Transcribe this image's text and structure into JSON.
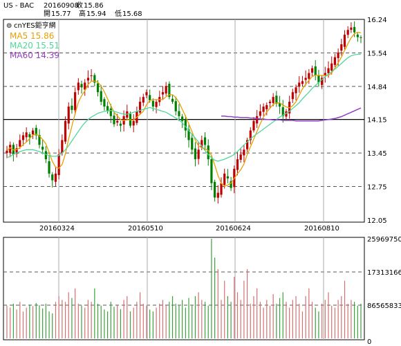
{
  "header": {
    "symbol": "US - BAC",
    "date": "20160908",
    "close_label": "收",
    "close": "15.86",
    "open_label": "開",
    "open": "15.77",
    "high_label": "高",
    "high": "15.94",
    "low_label": "低",
    "low": "15.68"
  },
  "watermark": "cnYES鉅亨網",
  "colors": {
    "up": "#c00000",
    "down": "#008000",
    "ma5": "#e8a000",
    "ma20": "#4fd89a",
    "ma60": "#9040c0",
    "frame": "#000000"
  },
  "chart_data": [
    {
      "type": "candlestick",
      "ylim": [
        12.05,
        16.24
      ],
      "y_ticks": [
        "16.24",
        "15.54",
        "14.84",
        "14.15",
        "13.45",
        "12.75",
        "12.05"
      ],
      "x_ticks": [
        "20160324",
        "20160510",
        "20160624",
        "20160810"
      ],
      "legend": [
        {
          "label": "MA5",
          "value": "15.86",
          "color": "#e8a000"
        },
        {
          "label": "MA20",
          "value": "15.51",
          "color": "#4fd89a"
        },
        {
          "label": "MA60",
          "value": "14.39",
          "color": "#9040c0"
        }
      ],
      "reference_line": 14.15,
      "closes": [
        13.5,
        13.62,
        13.42,
        13.55,
        13.72,
        13.82,
        13.88,
        13.78,
        13.92,
        13.82,
        13.62,
        13.52,
        13.32,
        13.02,
        12.88,
        13.02,
        13.42,
        13.72,
        14.12,
        14.42,
        14.35,
        14.72,
        14.92,
        14.82,
        14.92,
        15.02,
        15.07,
        14.92,
        14.72,
        14.52,
        14.42,
        14.32,
        14.22,
        14.05,
        14.12,
        14.02,
        14.22,
        14.32,
        14.02,
        14.12,
        14.32,
        14.52,
        14.62,
        14.72,
        14.55,
        14.42,
        14.52,
        14.62,
        14.72,
        14.85,
        14.62,
        14.52,
        14.32,
        14.22,
        14.12,
        13.92,
        13.72,
        13.52,
        13.32,
        13.52,
        13.72,
        13.62,
        13.32,
        12.82,
        12.52,
        12.62,
        12.82,
        13.02,
        12.92,
        12.72,
        13.12,
        13.32,
        13.42,
        13.52,
        13.72,
        13.92,
        14.12,
        14.22,
        14.32,
        14.42,
        14.45,
        14.52,
        14.62,
        14.48,
        14.42,
        14.22,
        14.32,
        14.52,
        14.72,
        14.82,
        14.92,
        14.95,
        15.02,
        15.12,
        15.22,
        15.07,
        14.92,
        15.02,
        15.12,
        15.22,
        15.32,
        15.45,
        15.55,
        15.72,
        15.92,
        16.02,
        16.07,
        15.97,
        15.87,
        15.86
      ],
      "ma20": [
        13.35,
        13.38,
        13.42,
        13.45,
        13.48,
        13.5,
        13.52,
        13.52,
        13.52,
        13.5,
        13.48,
        13.45,
        13.42,
        13.4,
        13.38,
        13.38,
        13.4,
        13.45,
        13.52,
        13.6,
        13.7,
        13.8,
        13.9,
        14,
        14.08,
        14.15,
        14.2,
        14.24,
        14.28,
        14.3,
        14.32,
        14.33,
        14.34,
        14.32,
        14.3,
        14.28,
        14.26,
        14.26,
        14.28,
        14.3,
        14.32,
        14.34,
        14.36,
        14.38,
        14.4,
        14.38,
        14.36,
        14.34,
        14.32,
        14.3,
        14.26,
        14.22,
        14.18,
        14.14,
        14.08,
        14,
        13.92,
        13.84,
        13.76,
        13.68,
        13.6,
        13.5,
        13.42,
        13.35,
        13.3,
        13.28,
        13.3,
        13.32,
        13.35,
        13.38,
        13.42,
        13.48,
        13.55,
        13.62,
        13.68,
        13.75,
        13.8,
        13.85,
        13.9,
        13.95,
        14,
        14.05,
        14.1,
        14.15,
        14.2,
        14.24,
        14.28,
        14.32,
        14.38,
        14.44,
        14.5,
        14.58,
        14.65,
        14.72,
        14.8,
        14.86,
        14.92,
        14.98,
        15.04,
        15.1,
        15.15,
        15.2,
        15.26,
        15.32,
        15.38,
        15.44,
        15.48,
        15.5,
        15.51,
        15.51
      ],
      "ma60": [
        14.22,
        14.22,
        14.21,
        14.21,
        14.2,
        14.2,
        14.19,
        14.19,
        14.19,
        14.18,
        14.18,
        14.17,
        14.16,
        14.16,
        14.15,
        14.15,
        14.14,
        14.14,
        14.14,
        14.13,
        14.13,
        14.13,
        14.13,
        14.12,
        14.12,
        14.12,
        14.12,
        14.12,
        14.12,
        14.12,
        14.12,
        14.13,
        14.14,
        14.15,
        14.16,
        14.17,
        14.19,
        14.21,
        14.24,
        14.27,
        14.3,
        14.33,
        14.36,
        14.39
      ]
    },
    {
      "type": "bar",
      "name": "volume",
      "ylim": [
        0,
        259697500
      ],
      "y_ticks": [
        "259697500",
        "173131667",
        "86565833",
        "0"
      ],
      "values": [
        85,
        80,
        90,
        75,
        95,
        70,
        80,
        88,
        84,
        92,
        86,
        78,
        90,
        70,
        65,
        95,
        110,
        100,
        95,
        120,
        105,
        130,
        90,
        85,
        80,
        100,
        95,
        130,
        90,
        85,
        75,
        70,
        95,
        82,
        88,
        76,
        100,
        110,
        70,
        80,
        95,
        120,
        90,
        85,
        75,
        70,
        80,
        90,
        100,
        85,
        95,
        110,
        90,
        85,
        100,
        80,
        105,
        85,
        110,
        120,
        100,
        95,
        85,
        259,
        210,
        180,
        100,
        150,
        110,
        95,
        160,
        120,
        100,
        150,
        180,
        90,
        110,
        130,
        95,
        80,
        100,
        85,
        115,
        90,
        105,
        120,
        95,
        80,
        100,
        110,
        90,
        70,
        110,
        130,
        95,
        80,
        70,
        90,
        100,
        120,
        85,
        80,
        100,
        110,
        150,
        90,
        100,
        95,
        85,
        90
      ]
    }
  ]
}
